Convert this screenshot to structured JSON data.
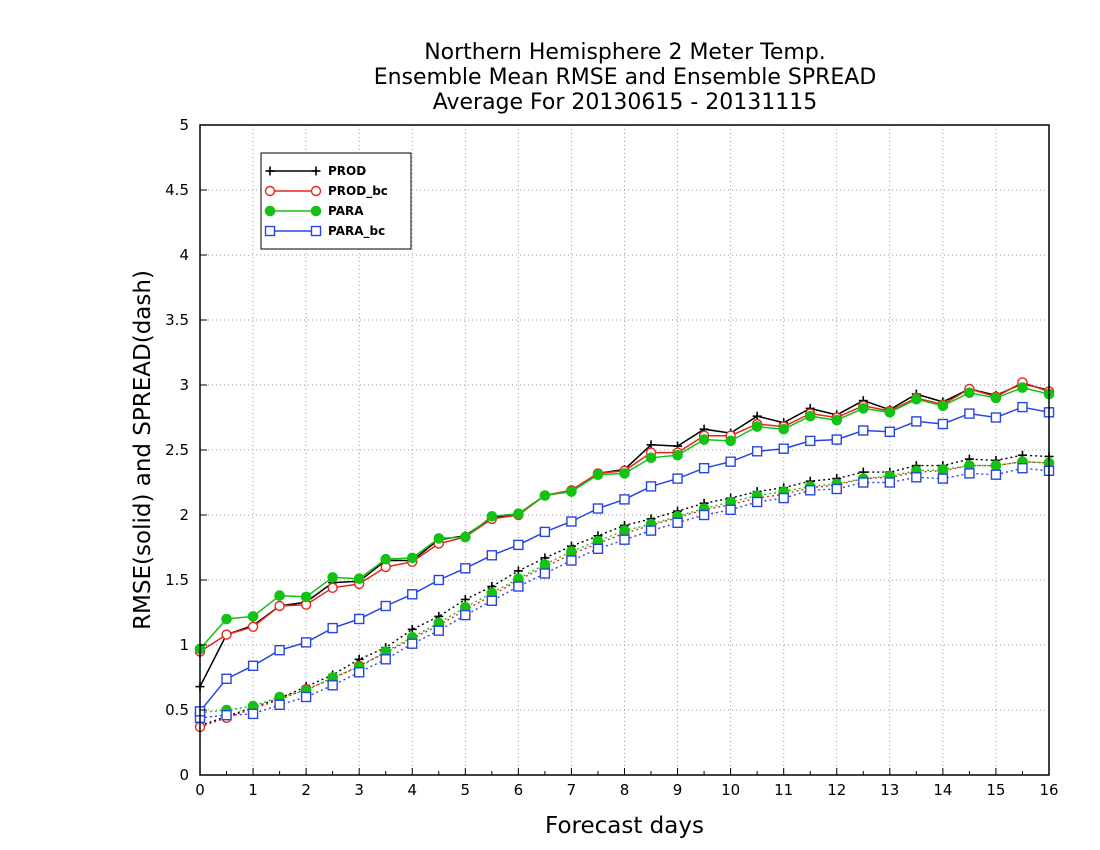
{
  "chart_data": {
    "type": "line",
    "title_lines": [
      "Northern Hemisphere 2 Meter Temp.",
      "Ensemble Mean RMSE and Ensemble SPREAD",
      "Average For 20130615 - 20131115"
    ],
    "xlabel": "Forecast days",
    "ylabel": "RMSE(solid) and SPREAD(dash)",
    "xlim": [
      0,
      16
    ],
    "ylim": [
      0,
      5
    ],
    "x_ticks": [
      "0",
      "1",
      "2",
      "3",
      "4",
      "5",
      "6",
      "7",
      "8",
      "9",
      "10",
      "11",
      "12",
      "13",
      "14",
      "15",
      "16"
    ],
    "y_ticks": [
      "0",
      "0.5",
      "1",
      "1.5",
      "2",
      "2.5",
      "3",
      "3.5",
      "4",
      "4.5",
      "5"
    ],
    "grid": true,
    "legend_position": "top-left",
    "x": [
      0,
      0.5,
      1,
      1.5,
      2,
      2.5,
      3,
      3.5,
      4,
      4.5,
      5,
      5.5,
      6,
      6.5,
      7,
      7.5,
      8,
      8.5,
      9,
      9.5,
      10,
      10.5,
      11,
      11.5,
      12,
      12.5,
      13,
      13.5,
      14,
      14.5,
      15,
      15.5,
      16
    ],
    "series": [
      {
        "name": "PROD",
        "color": "#000000",
        "marker": "plus",
        "rmse": [
          0.68,
          1.08,
          1.15,
          1.3,
          1.33,
          1.48,
          1.49,
          1.65,
          1.65,
          1.81,
          1.84,
          1.98,
          2.01,
          2.15,
          2.19,
          2.32,
          2.35,
          2.54,
          2.53,
          2.66,
          2.63,
          2.76,
          2.71,
          2.82,
          2.77,
          2.88,
          2.81,
          2.93,
          2.87,
          2.97,
          2.92,
          3.01,
          2.96
        ],
        "spread": [
          0.38,
          0.45,
          0.52,
          0.59,
          0.68,
          0.77,
          0.89,
          0.98,
          1.12,
          1.22,
          1.35,
          1.45,
          1.57,
          1.67,
          1.76,
          1.84,
          1.92,
          1.97,
          2.03,
          2.09,
          2.13,
          2.18,
          2.21,
          2.26,
          2.28,
          2.33,
          2.33,
          2.38,
          2.38,
          2.43,
          2.42,
          2.46,
          2.45
        ]
      },
      {
        "name": "PROD_bc",
        "color": "#e8231f",
        "marker": "open-circle",
        "rmse": [
          0.95,
          1.08,
          1.14,
          1.3,
          1.31,
          1.44,
          1.47,
          1.6,
          1.64,
          1.78,
          1.83,
          1.97,
          2.0,
          2.15,
          2.19,
          2.32,
          2.34,
          2.48,
          2.48,
          2.61,
          2.61,
          2.7,
          2.68,
          2.78,
          2.75,
          2.84,
          2.8,
          2.9,
          2.85,
          2.97,
          2.91,
          3.02,
          2.95
        ],
        "spread": [
          0.37,
          0.44,
          0.51,
          0.58,
          0.66,
          0.74,
          0.84,
          0.94,
          1.05,
          1.15,
          1.27,
          1.38,
          1.5,
          1.6,
          1.7,
          1.78,
          1.86,
          1.92,
          1.98,
          2.04,
          2.08,
          2.13,
          2.16,
          2.21,
          2.23,
          2.28,
          2.29,
          2.33,
          2.34,
          2.38,
          2.38,
          2.41,
          2.4
        ]
      },
      {
        "name": "PARA",
        "color": "#13c213",
        "marker": "filled-circle",
        "rmse": [
          0.97,
          1.2,
          1.22,
          1.38,
          1.37,
          1.52,
          1.51,
          1.66,
          1.67,
          1.82,
          1.83,
          1.99,
          2.01,
          2.15,
          2.18,
          2.31,
          2.32,
          2.44,
          2.46,
          2.58,
          2.57,
          2.68,
          2.66,
          2.76,
          2.73,
          2.82,
          2.79,
          2.89,
          2.84,
          2.94,
          2.9,
          2.98,
          2.93
        ],
        "spread": [
          0.48,
          0.5,
          0.53,
          0.6,
          0.65,
          0.75,
          0.83,
          0.95,
          1.06,
          1.17,
          1.29,
          1.4,
          1.51,
          1.62,
          1.72,
          1.8,
          1.88,
          1.93,
          1.99,
          2.05,
          2.1,
          2.15,
          2.18,
          2.22,
          2.24,
          2.28,
          2.3,
          2.34,
          2.35,
          2.38,
          2.38,
          2.41,
          2.4
        ]
      },
      {
        "name": "PARA_bc",
        "color": "#2745e3",
        "marker": "open-square",
        "rmse": [
          0.49,
          0.74,
          0.84,
          0.96,
          1.02,
          1.13,
          1.2,
          1.3,
          1.39,
          1.5,
          1.59,
          1.69,
          1.77,
          1.87,
          1.95,
          2.05,
          2.12,
          2.22,
          2.28,
          2.36,
          2.41,
          2.49,
          2.51,
          2.57,
          2.58,
          2.65,
          2.64,
          2.72,
          2.7,
          2.78,
          2.75,
          2.83,
          2.79
        ],
        "spread": [
          0.44,
          0.46,
          0.47,
          0.54,
          0.6,
          0.69,
          0.79,
          0.89,
          1.01,
          1.11,
          1.23,
          1.34,
          1.45,
          1.55,
          1.65,
          1.74,
          1.81,
          1.88,
          1.94,
          2.0,
          2.04,
          2.1,
          2.13,
          2.19,
          2.2,
          2.25,
          2.25,
          2.29,
          2.28,
          2.32,
          2.31,
          2.36,
          2.34
        ]
      }
    ]
  }
}
